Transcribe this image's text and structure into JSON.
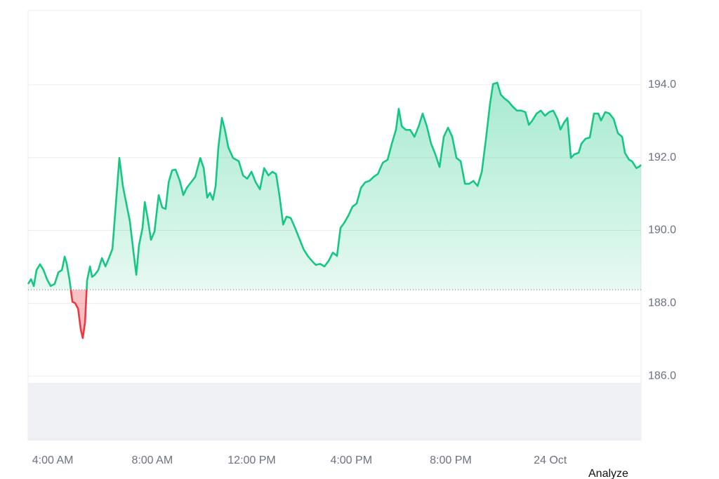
{
  "chart_data": {
    "type": "line",
    "x": [
      3.01,
      3.13,
      3.24,
      3.35,
      3.49,
      3.63,
      3.77,
      3.92,
      4.08,
      4.23,
      4.37,
      4.48,
      4.56,
      4.68,
      4.79,
      4.9,
      5.02,
      5.13,
      5.21,
      5.3,
      5.38,
      5.5,
      5.58,
      5.69,
      5.83,
      5.98,
      6.12,
      6.26,
      6.4,
      6.54,
      6.68,
      6.82,
      6.96,
      7.1,
      7.25,
      7.36,
      7.47,
      7.61,
      7.7,
      7.81,
      7.95,
      8.09,
      8.26,
      8.4,
      8.54,
      8.66,
      8.8,
      8.94,
      9.11,
      9.25,
      9.39,
      9.56,
      9.73,
      9.93,
      10.07,
      10.21,
      10.32,
      10.44,
      10.55,
      10.66,
      10.8,
      10.92,
      11.06,
      11.25,
      11.48,
      11.65,
      11.82,
      11.99,
      12.16,
      12.33,
      12.5,
      12.67,
      12.83,
      12.98,
      13.12,
      13.26,
      13.4,
      13.57,
      13.74,
      13.91,
      14.08,
      14.25,
      14.42,
      14.58,
      14.75,
      14.92,
      15.09,
      15.26,
      15.43,
      15.57,
      15.71,
      15.88,
      16.05,
      16.22,
      16.39,
      16.56,
      16.73,
      16.9,
      17.07,
      17.27,
      17.46,
      17.63,
      17.8,
      17.91,
      18.03,
      18.2,
      18.37,
      18.54,
      18.71,
      18.87,
      19.04,
      19.21,
      19.38,
      19.55,
      19.72,
      19.89,
      20.06,
      20.23,
      20.4,
      20.57,
      20.74,
      20.91,
      21.08,
      21.25,
      21.41,
      21.58,
      21.7,
      21.87,
      22.01,
      22.15,
      22.32,
      22.49,
      22.66,
      22.83,
      23.0,
      23.14,
      23.28,
      23.45,
      23.62,
      23.79,
      23.96,
      24.12,
      24.29,
      24.41,
      24.55,
      24.69,
      24.83,
      24.97,
      25.14,
      25.25,
      25.42,
      25.59,
      25.76,
      25.93,
      26.04,
      26.21,
      26.38,
      26.55,
      26.72,
      26.89,
      27.0,
      27.17,
      27.29,
      27.46,
      27.57,
      27.65
    ],
    "values": [
      188.53,
      188.66,
      188.47,
      188.91,
      189.07,
      188.91,
      188.66,
      188.47,
      188.53,
      188.85,
      188.91,
      189.28,
      189.1,
      188.62,
      188.04,
      188.0,
      187.85,
      187.27,
      187.04,
      187.47,
      188.62,
      189.01,
      188.72,
      188.78,
      188.91,
      189.24,
      189.01,
      189.24,
      189.49,
      190.74,
      191.99,
      191.22,
      190.74,
      190.26,
      189.39,
      188.78,
      189.59,
      190.07,
      190.78,
      190.36,
      189.74,
      189.97,
      190.97,
      190.63,
      190.59,
      191.32,
      191.65,
      191.67,
      191.36,
      190.97,
      191.17,
      191.32,
      191.47,
      191.99,
      191.71,
      190.9,
      191.03,
      190.84,
      191.22,
      192.28,
      193.09,
      192.76,
      192.28,
      191.99,
      191.9,
      191.51,
      191.42,
      191.61,
      191.32,
      191.13,
      191.71,
      191.51,
      191.61,
      191.55,
      190.93,
      190.16,
      190.38,
      190.34,
      190.07,
      189.78,
      189.49,
      189.3,
      189.16,
      189.05,
      189.08,
      189.01,
      189.16,
      189.39,
      189.3,
      190.07,
      190.2,
      190.4,
      190.65,
      190.74,
      191.17,
      191.32,
      191.36,
      191.47,
      191.55,
      191.86,
      191.94,
      192.38,
      192.77,
      193.34,
      192.86,
      192.76,
      192.76,
      192.57,
      192.86,
      193.21,
      192.86,
      192.38,
      192.09,
      191.74,
      192.57,
      192.82,
      192.57,
      191.99,
      191.9,
      191.28,
      191.28,
      191.36,
      191.22,
      191.61,
      192.48,
      193.48,
      194.02,
      194.06,
      193.73,
      193.63,
      193.54,
      193.4,
      193.29,
      193.29,
      193.25,
      192.9,
      193.02,
      193.21,
      193.29,
      193.15,
      193.25,
      193.29,
      193.06,
      192.77,
      192.96,
      193.09,
      191.99,
      192.09,
      192.13,
      192.38,
      192.52,
      192.55,
      193.21,
      193.21,
      193.02,
      193.25,
      193.21,
      193.06,
      192.67,
      192.57,
      192.13,
      191.94,
      191.9,
      191.71,
      191.75,
      191.8
    ],
    "baseline": 188.37,
    "up_color": "#16c784",
    "down_color": "#ea3943",
    "xlim": [
      3.01,
      27.65
    ],
    "xticks": [
      {
        "value": 4,
        "label": "4:00 AM"
      },
      {
        "value": 8,
        "label": "8:00 AM"
      },
      {
        "value": 12,
        "label": "12:00 PM"
      },
      {
        "value": 16,
        "label": "4:00 PM"
      },
      {
        "value": 20,
        "label": "8:00 PM"
      },
      {
        "value": 24,
        "label": "24 Oct"
      }
    ],
    "ylim": [
      184.23,
      196.04
    ],
    "yticks": [
      {
        "value": 186,
        "label": "186.0"
      },
      {
        "value": 188,
        "label": "188.0"
      },
      {
        "value": 190,
        "label": "190.0"
      },
      {
        "value": 192,
        "label": "192.0"
      },
      {
        "value": 194,
        "label": "194.0"
      }
    ],
    "grid": true
  },
  "button": {
    "label": "Analyze"
  }
}
